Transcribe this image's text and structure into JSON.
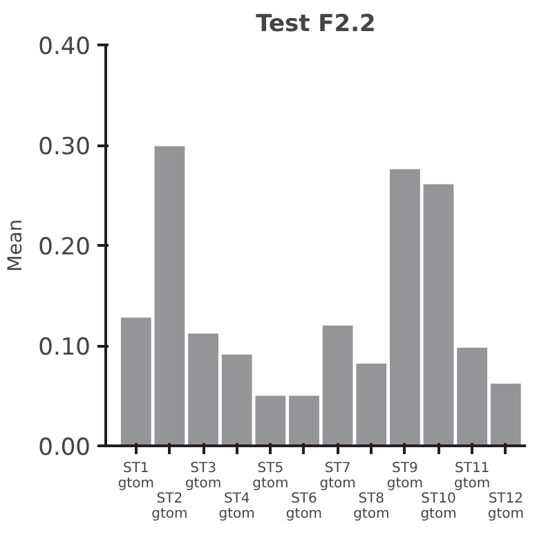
{
  "chart_data": {
    "type": "bar",
    "title": "Test F2.2",
    "ylabel": "Mean",
    "categories": [
      "ST1\ngtom",
      "ST2\ngtom",
      "ST3\ngtom",
      "ST4\ngtom",
      "ST5\ngtom",
      "ST6\ngtom",
      "ST7\ngtom",
      "ST8\ngtom",
      "ST9\ngtom",
      "ST10\ngtom",
      "ST11\ngtom",
      "ST12\ngtom"
    ],
    "values": [
      0.128,
      0.299,
      0.112,
      0.091,
      0.05,
      0.05,
      0.12,
      0.082,
      0.276,
      0.261,
      0.098,
      0.062
    ],
    "color": "#939598",
    "ylim": [
      0,
      0.4
    ],
    "yticks": [
      {
        "value": 0,
        "label": "0.00"
      },
      {
        "value": 0.1,
        "label": "0.10"
      },
      {
        "value": 0.2,
        "label": "0.20"
      },
      {
        "value": 0.3,
        "label": "0.30"
      },
      {
        "value": 0.4,
        "label": "0.40"
      }
    ],
    "grid": false
  }
}
